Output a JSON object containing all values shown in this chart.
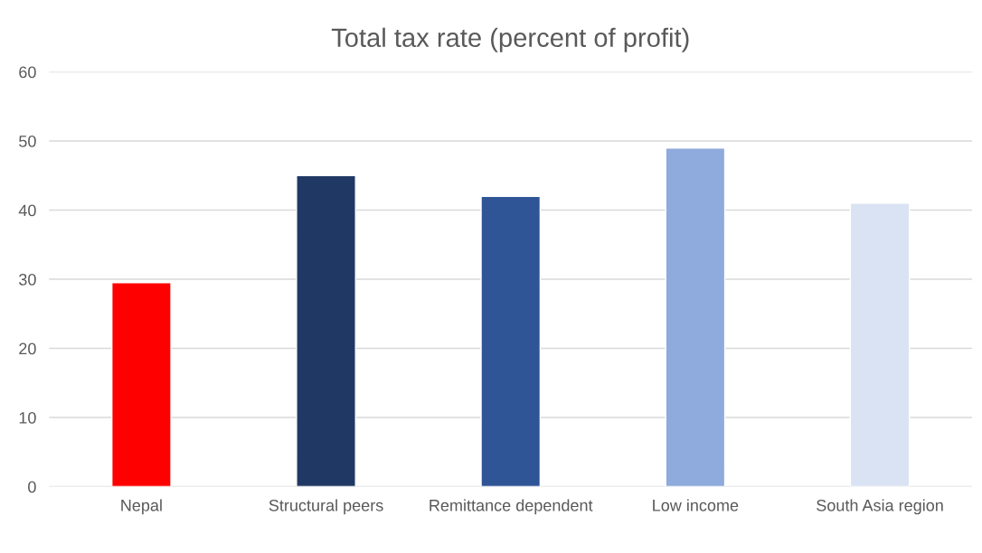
{
  "chart_data": {
    "type": "bar",
    "title": "Total tax rate (percent of profit)",
    "categories": [
      "Nepal",
      "Structural peers",
      "Remittance dependent",
      "Low income",
      "South Asia region"
    ],
    "values": [
      29.5,
      45,
      42,
      49,
      41
    ],
    "colors": [
      "#ff0000",
      "#203864",
      "#2f5597",
      "#8faadc",
      "#dae3f3"
    ],
    "ylim": [
      0,
      60
    ],
    "yticks": [
      0,
      10,
      20,
      30,
      40,
      50,
      60
    ],
    "grid": "y"
  }
}
